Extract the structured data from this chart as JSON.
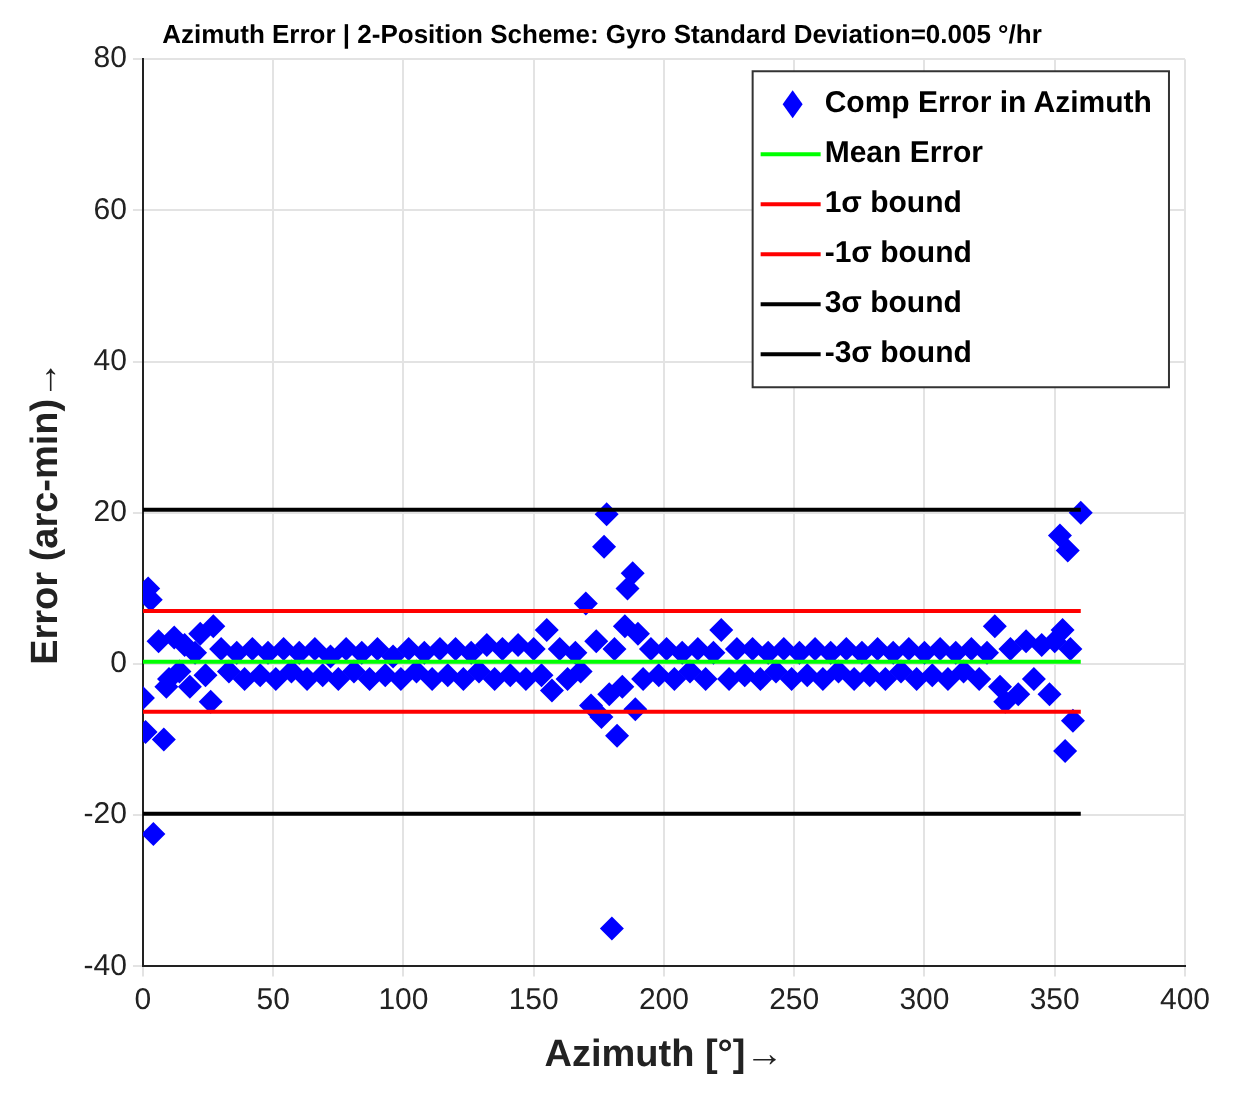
{
  "chart_data": {
    "type": "scatter",
    "title": "Azimuth Error | 2-Position Scheme: Gyro Standard Deviation=0.005 °/hr",
    "xlabel": "Azimuth [°]→",
    "ylabel": "Error (arc-min)→",
    "xlim": [
      0,
      400
    ],
    "xticks": [
      0,
      50,
      100,
      150,
      200,
      250,
      300,
      350,
      400
    ],
    "ylim": [
      -40,
      80
    ],
    "yticks": [
      -40,
      -20,
      0,
      20,
      40,
      60,
      80
    ],
    "grid": true,
    "legend": "top right",
    "series": [
      {
        "name": "Comp Error in Azimuth",
        "color": "#0000ff",
        "marker": "diamond",
        "x": [
          0,
          1,
          2,
          3,
          4,
          6,
          8,
          9,
          10,
          12,
          14,
          16,
          18,
          20,
          22,
          24,
          26,
          27,
          30,
          33,
          36,
          39,
          42,
          45,
          48,
          51,
          54,
          57,
          60,
          63,
          66,
          69,
          72,
          75,
          78,
          81,
          84,
          87,
          90,
          93,
          96,
          99,
          102,
          105,
          108,
          111,
          114,
          117,
          120,
          123,
          126,
          129,
          132,
          135,
          138,
          141,
          144,
          147,
          150,
          153,
          155,
          157,
          160,
          163,
          166,
          168,
          170,
          172,
          174,
          176,
          177,
          178,
          179,
          180,
          181,
          182,
          184,
          185,
          186,
          188,
          189,
          190,
          192,
          195,
          198,
          201,
          204,
          207,
          210,
          213,
          216,
          219,
          222,
          225,
          228,
          231,
          234,
          237,
          240,
          243,
          246,
          249,
          252,
          255,
          258,
          261,
          264,
          267,
          270,
          273,
          276,
          279,
          282,
          285,
          288,
          291,
          294,
          297,
          300,
          303,
          306,
          309,
          312,
          315,
          318,
          321,
          324,
          327,
          329,
          331,
          333,
          336,
          339,
          342,
          345,
          348,
          350,
          352,
          353,
          354,
          355,
          356,
          357,
          360
        ],
        "values": [
          -4.5,
          -9,
          10,
          8.5,
          -22.5,
          3,
          -10,
          -3,
          -2,
          3.5,
          -1,
          2.5,
          -3,
          1.5,
          4,
          -1.5,
          -5,
          5,
          2,
          -1,
          1.5,
          -2,
          2,
          -1.5,
          1.5,
          -2,
          2,
          -1,
          1.5,
          -2,
          2,
          -1.5,
          1,
          -2,
          2,
          -1,
          1.5,
          -2,
          2,
          -1.5,
          1,
          -2,
          2,
          -1,
          1.5,
          -2,
          2,
          -1.5,
          2,
          -2,
          1.5,
          -1,
          2.5,
          -2,
          2,
          -1.5,
          2.5,
          -2,
          2,
          -1.5,
          4.5,
          -3.5,
          2,
          -2,
          1.5,
          -1,
          8,
          -5.5,
          3,
          -7,
          15.5,
          19.8,
          -4,
          -35,
          2,
          -9.5,
          -3,
          5,
          10,
          12,
          -6,
          4,
          -2,
          2,
          -1.5,
          2,
          -2,
          1.5,
          -1,
          2,
          -2,
          1.5,
          4.5,
          -2,
          2,
          -1.5,
          2,
          -2,
          1.5,
          -1,
          2,
          -2,
          1.5,
          -1.5,
          2,
          -2,
          1.5,
          -1,
          2,
          -2,
          1.5,
          -1.5,
          2,
          -2,
          1.5,
          -1,
          2,
          -2,
          1.5,
          -1.5,
          2,
          -2,
          1.5,
          -1,
          2,
          -2,
          1.5,
          5,
          -3,
          -5,
          2,
          -4,
          3,
          -2,
          2.5,
          -4,
          3,
          17,
          4.5,
          -11.5,
          15,
          2,
          -7.5,
          20
        ]
      },
      {
        "name": "Mean Error",
        "type": "line",
        "color": "#00ff00",
        "x": [
          0,
          360
        ],
        "values": [
          0.3,
          0.3
        ]
      },
      {
        "name": "1σ bound",
        "type": "line",
        "color": "#ff0000",
        "x": [
          0,
          360
        ],
        "values": [
          7,
          7
        ]
      },
      {
        "name": "-1σ bound",
        "type": "line",
        "color": "#ff0000",
        "x": [
          0,
          360
        ],
        "values": [
          -6.3,
          -6.3
        ]
      },
      {
        "name": "3σ bound",
        "type": "line",
        "color": "#000000",
        "x": [
          0,
          360
        ],
        "values": [
          20.4,
          20.4
        ]
      },
      {
        "name": "-3σ bound",
        "type": "line",
        "color": "#000000",
        "x": [
          0,
          360
        ],
        "values": [
          -19.8,
          -19.8
        ]
      }
    ]
  }
}
